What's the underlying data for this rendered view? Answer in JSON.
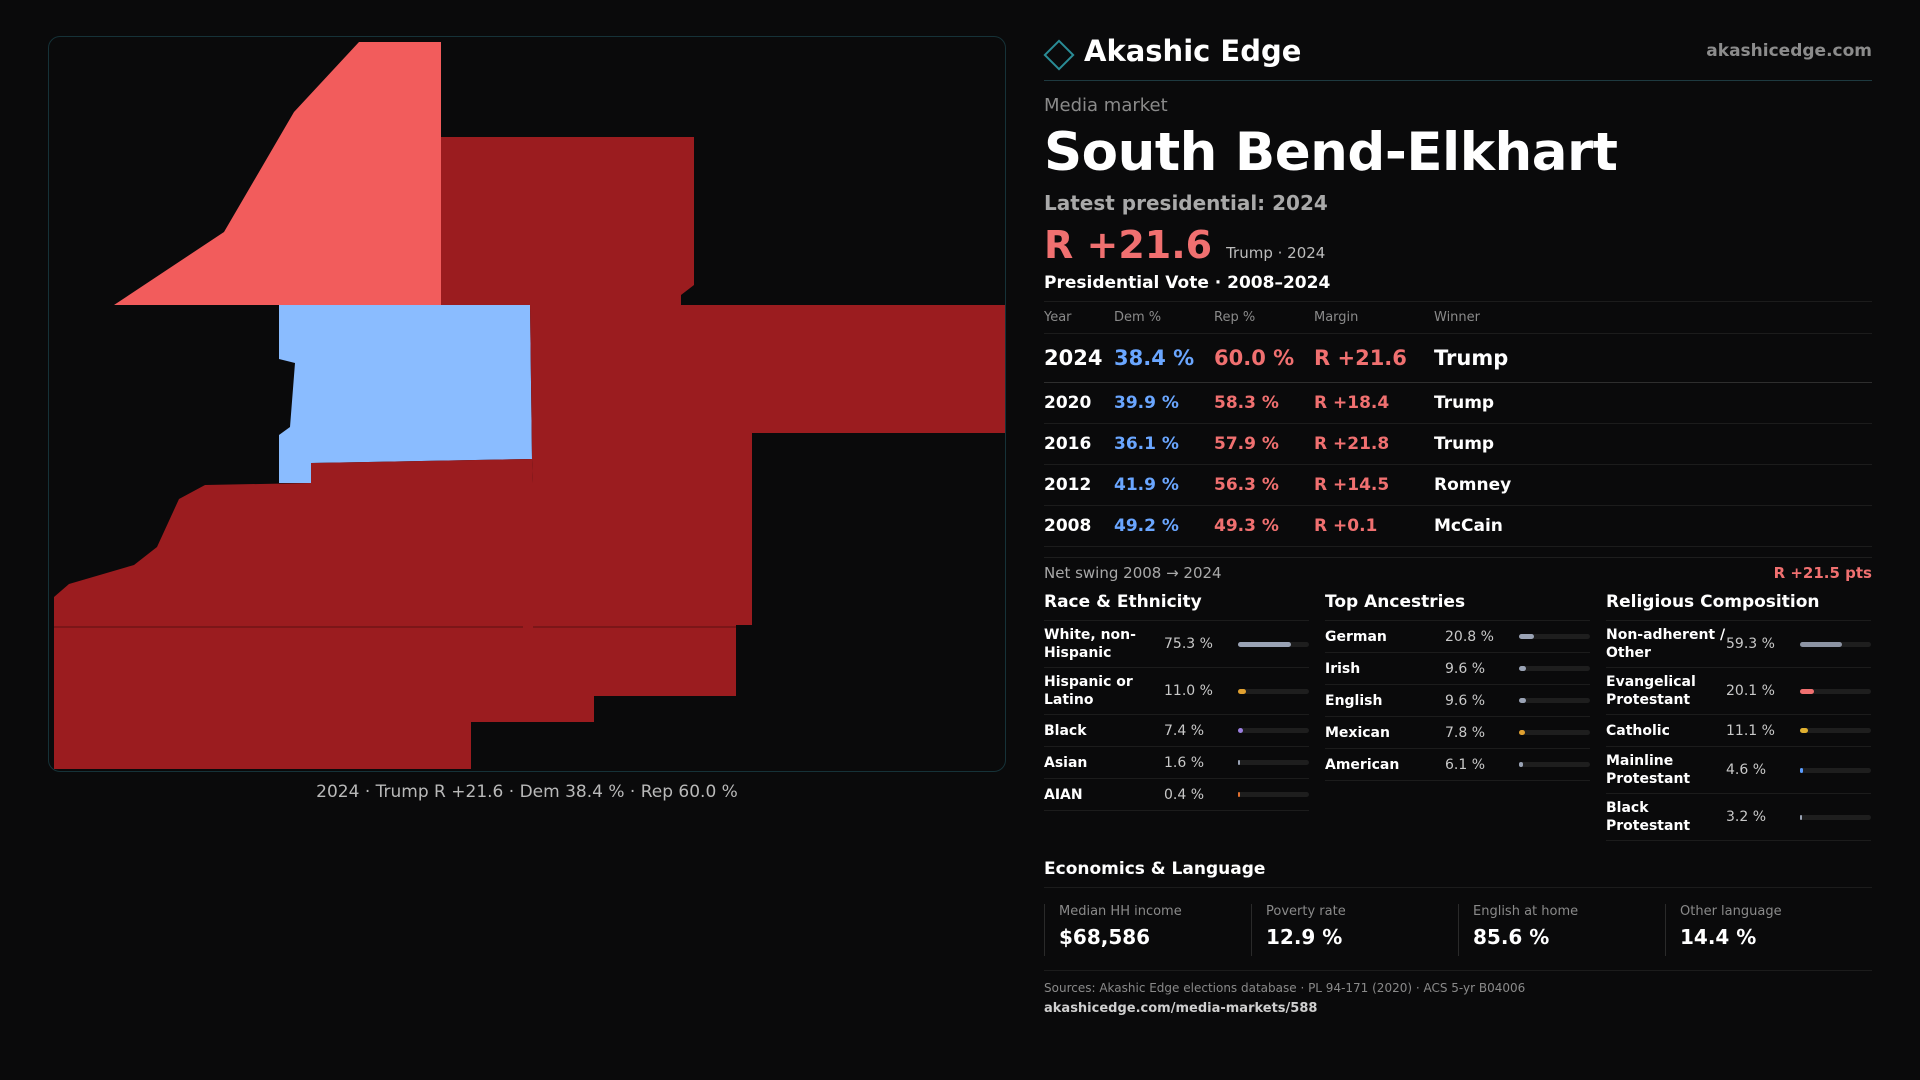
{
  "brand": {
    "name": "Akashic Edge",
    "site": "akashicedge.com"
  },
  "eyebrow": "Media market",
  "title": "South Bend-Elkhart",
  "latest_label": "Latest presidential: 2024",
  "headline": {
    "margin": "R +21.6",
    "sub": "Trump · 2024"
  },
  "vote_section_title": "Presidential Vote · 2008–2024",
  "vote_table": {
    "headers": [
      "Year",
      "Dem %",
      "Rep %",
      "Margin",
      "Winner"
    ],
    "rows": [
      {
        "year": "2024",
        "dem": "38.4 %",
        "rep": "60.0 %",
        "margin": "R +21.6",
        "winner": "Trump"
      },
      {
        "year": "2020",
        "dem": "39.9 %",
        "rep": "58.3 %",
        "margin": "R +18.4",
        "winner": "Trump"
      },
      {
        "year": "2016",
        "dem": "36.1 %",
        "rep": "57.9 %",
        "margin": "R +21.8",
        "winner": "Trump"
      },
      {
        "year": "2012",
        "dem": "41.9 %",
        "rep": "56.3 %",
        "margin": "R +14.5",
        "winner": "Romney"
      },
      {
        "year": "2008",
        "dem": "49.2 %",
        "rep": "49.3 %",
        "margin": "R +0.1",
        "winner": "McCain"
      }
    ]
  },
  "swing": {
    "label": "Net swing 2008 → 2024",
    "value": "R +21.5 pts"
  },
  "race": {
    "title": "Race & Ethnicity",
    "items": [
      {
        "label": "White, non-Hispanic",
        "value": "75.3 %",
        "pct": 75.3,
        "color": "#9aa3b5"
      },
      {
        "label": "Hispanic or Latino",
        "value": "11.0 %",
        "pct": 11.0,
        "color": "#e0a030"
      },
      {
        "label": "Black",
        "value": "7.4 %",
        "pct": 7.4,
        "color": "#9b7fe0"
      },
      {
        "label": "Asian",
        "value": "1.6 %",
        "pct": 1.6,
        "color": "#9aa3b5"
      },
      {
        "label": "AIAN",
        "value": "0.4 %",
        "pct": 0.4,
        "color": "#e07030"
      }
    ]
  },
  "ancestry": {
    "title": "Top Ancestries",
    "items": [
      {
        "label": "German",
        "value": "20.8 %",
        "pct": 20.8,
        "color": "#9aa3b5"
      },
      {
        "label": "Irish",
        "value": "9.6 %",
        "pct": 9.6,
        "color": "#9aa3b5"
      },
      {
        "label": "English",
        "value": "9.6 %",
        "pct": 9.6,
        "color": "#9aa3b5"
      },
      {
        "label": "Mexican",
        "value": "7.8 %",
        "pct": 7.8,
        "color": "#e0a030"
      },
      {
        "label": "American",
        "value": "6.1 %",
        "pct": 6.1,
        "color": "#9aa3b5"
      }
    ]
  },
  "religion": {
    "title": "Religious Composition",
    "items": [
      {
        "label": "Non-adherent / Other",
        "value": "59.3 %",
        "pct": 59.3,
        "color": "#8c93a3"
      },
      {
        "label": "Evangelical Protestant",
        "value": "20.1 %",
        "pct": 20.1,
        "color": "#f07070"
      },
      {
        "label": "Catholic",
        "value": "11.1 %",
        "pct": 11.1,
        "color": "#e0b030"
      },
      {
        "label": "Mainline Protestant",
        "value": "4.6 %",
        "pct": 4.6,
        "color": "#5a9cff"
      },
      {
        "label": "Black Protestant",
        "value": "3.2 %",
        "pct": 3.2,
        "color": "#9aa3b5"
      }
    ]
  },
  "economics": {
    "title": "Economics & Language",
    "cells": [
      {
        "label": "Median HH income",
        "value": "$68,586"
      },
      {
        "label": "Poverty rate",
        "value": "12.9 %"
      },
      {
        "label": "English at home",
        "value": "85.6 %"
      },
      {
        "label": "Other language",
        "value": "14.4 %"
      }
    ]
  },
  "sources": {
    "text": "Sources: Akashic Edge elections database · PL 94-171 (2020) · ACS 5-yr B04006",
    "url": "akashicedge.com/media-markets/588"
  },
  "map": {
    "caption": "2024 · Trump R +21.6 · Dem 38.4 % · Rep 60.0 %",
    "colors": {
      "rep_strong": "#9b1c1f",
      "rep_light": "#f25c5c",
      "dem": "#8abcff"
    }
  }
}
